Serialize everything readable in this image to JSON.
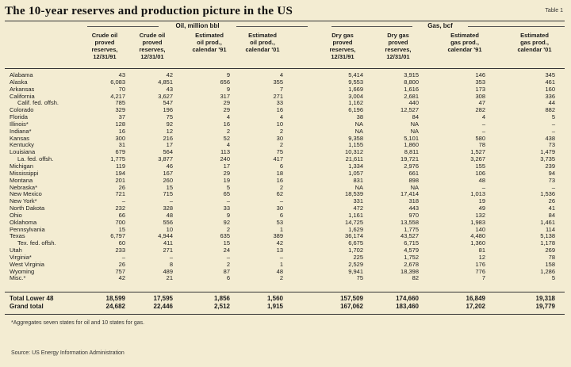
{
  "title": "The 10-year reserves and production picture in the US",
  "table_label": "Table 1",
  "groups": {
    "oil": "Oil, million bbl",
    "gas": "Gas, bcf"
  },
  "columns": [
    "Crude oil\nproved\nreserves,\n12/31/91",
    "Crude oil\nproved\nreserves,\n12/31/01",
    "Estimated\noil prod.,\ncalendar '91",
    "Estimated\noil prod.,\ncalendar '01",
    "Dry gas\nproved\nreserves,\n12/31/91",
    "Dry gas\nproved\nreserves,\n12/31/01",
    "Estimated\ngas prod.,\ncalendar '91",
    "Estimated\ngas prod.,\ncalendar '01"
  ],
  "rows": [
    {
      "name": "Alabama",
      "sub": false,
      "v": [
        "43",
        "42",
        "9",
        "4",
        "5,414",
        "3,915",
        "146",
        "345"
      ]
    },
    {
      "name": "Alaska",
      "sub": false,
      "v": [
        "6,083",
        "4,851",
        "656",
        "355",
        "9,553",
        "8,800",
        "353",
        "461"
      ]
    },
    {
      "name": "Arkansas",
      "sub": false,
      "v": [
        "70",
        "43",
        "9",
        "7",
        "1,669",
        "1,616",
        "173",
        "160"
      ]
    },
    {
      "name": "California",
      "sub": false,
      "v": [
        "4,217",
        "3,627",
        "317",
        "271",
        "3,004",
        "2,681",
        "308",
        "336"
      ]
    },
    {
      "name": "Calif. fed. offsh.",
      "sub": true,
      "v": [
        "785",
        "547",
        "29",
        "33",
        "1,162",
        "440",
        "47",
        "44"
      ]
    },
    {
      "name": "Colorado",
      "sub": false,
      "v": [
        "329",
        "196",
        "29",
        "16",
        "6,196",
        "12,527",
        "282",
        "882"
      ]
    },
    {
      "name": "Florida",
      "sub": false,
      "v": [
        "37",
        "75",
        "4",
        "4",
        "38",
        "84",
        "4",
        "5"
      ]
    },
    {
      "name": "Illinois*",
      "sub": false,
      "v": [
        "128",
        "92",
        "16",
        "10",
        "NA",
        "NA",
        "–",
        "–"
      ]
    },
    {
      "name": "Indiana*",
      "sub": false,
      "v": [
        "16",
        "12",
        "2",
        "2",
        "NA",
        "NA",
        "–",
        "–"
      ]
    },
    {
      "name": "Kansas",
      "sub": false,
      "v": [
        "300",
        "216",
        "52",
        "30",
        "9,358",
        "5,101",
        "580",
        "438"
      ]
    },
    {
      "name": "Kentucky",
      "sub": false,
      "v": [
        "31",
        "17",
        "4",
        "2",
        "1,155",
        "1,860",
        "78",
        "73"
      ]
    },
    {
      "name": "Louisiana",
      "sub": false,
      "v": [
        "679",
        "564",
        "113",
        "75",
        "10,312",
        "8,811",
        "1,527",
        "1,479"
      ]
    },
    {
      "name": "La. fed. offsh.",
      "sub": true,
      "v": [
        "1,775",
        "3,877",
        "240",
        "417",
        "21,611",
        "19,721",
        "3,267",
        "3,735"
      ]
    },
    {
      "name": "Michigan",
      "sub": false,
      "v": [
        "119",
        "46",
        "17",
        "6",
        "1,334",
        "2,976",
        "155",
        "239"
      ]
    },
    {
      "name": "Mississippi",
      "sub": false,
      "v": [
        "194",
        "167",
        "29",
        "18",
        "1,057",
        "661",
        "106",
        "94"
      ]
    },
    {
      "name": "Montana",
      "sub": false,
      "v": [
        "201",
        "260",
        "19",
        "16",
        "831",
        "898",
        "48",
        "73"
      ]
    },
    {
      "name": "Nebraska*",
      "sub": false,
      "v": [
        "26",
        "15",
        "5",
        "2",
        "NA",
        "NA",
        "–",
        "–"
      ]
    },
    {
      "name": "New Mexico",
      "sub": false,
      "v": [
        "721",
        "715",
        "65",
        "62",
        "18,539",
        "17,414",
        "1,013",
        "1,536"
      ]
    },
    {
      "name": "New York*",
      "sub": false,
      "v": [
        "–",
        "–",
        "–",
        "–",
        "331",
        "318",
        "19",
        "26"
      ]
    },
    {
      "name": "North Dakota",
      "sub": false,
      "v": [
        "232",
        "328",
        "33",
        "30",
        "472",
        "443",
        "49",
        "41"
      ]
    },
    {
      "name": "Ohio",
      "sub": false,
      "v": [
        "66",
        "48",
        "9",
        "6",
        "1,161",
        "970",
        "132",
        "84"
      ]
    },
    {
      "name": "Oklahoma",
      "sub": false,
      "v": [
        "700",
        "556",
        "92",
        "53",
        "14,725",
        "13,558",
        "1,983",
        "1,461"
      ]
    },
    {
      "name": "Pennsylvania",
      "sub": false,
      "v": [
        "15",
        "10",
        "2",
        "1",
        "1,629",
        "1,775",
        "140",
        "114"
      ]
    },
    {
      "name": "Texas",
      "sub": false,
      "v": [
        "6,797",
        "4,944",
        "635",
        "389",
        "36,174",
        "43,527",
        "4,480",
        "5,138"
      ]
    },
    {
      "name": "Tex. fed. offsh.",
      "sub": true,
      "v": [
        "60",
        "411",
        "15",
        "42",
        "6,675",
        "6,715",
        "1,360",
        "1,178"
      ]
    },
    {
      "name": "Utah",
      "sub": false,
      "v": [
        "233",
        "271",
        "24",
        "13",
        "1,702",
        "4,579",
        "81",
        "269"
      ]
    },
    {
      "name": "Virginia*",
      "sub": false,
      "v": [
        "–",
        "–",
        "–",
        "–",
        "225",
        "1,752",
        "12",
        "78"
      ]
    },
    {
      "name": "West Virginia",
      "sub": false,
      "v": [
        "26",
        "8",
        "2",
        "1",
        "2,529",
        "2,678",
        "176",
        "158"
      ]
    },
    {
      "name": "Wyoming",
      "sub": false,
      "v": [
        "757",
        "489",
        "87",
        "48",
        "9,941",
        "18,398",
        "776",
        "1,286"
      ]
    },
    {
      "name": "Misc.*",
      "sub": false,
      "v": [
        "42",
        "21",
        "6",
        "2",
        "75",
        "82",
        "7",
        "5"
      ]
    }
  ],
  "totals": [
    {
      "name": "Total Lower 48",
      "v": [
        "18,599",
        "17,595",
        "1,856",
        "1,560",
        "157,509",
        "174,660",
        "16,849",
        "19,318"
      ]
    },
    {
      "name": "Grand total",
      "v": [
        "24,682",
        "22,446",
        "2,512",
        "1,915",
        "167,062",
        "183,460",
        "17,202",
        "19,779"
      ]
    }
  ],
  "footnote": "*Aggregates seven states for oil and 10 states for gas.",
  "source": "Source: US Energy Information Administration"
}
